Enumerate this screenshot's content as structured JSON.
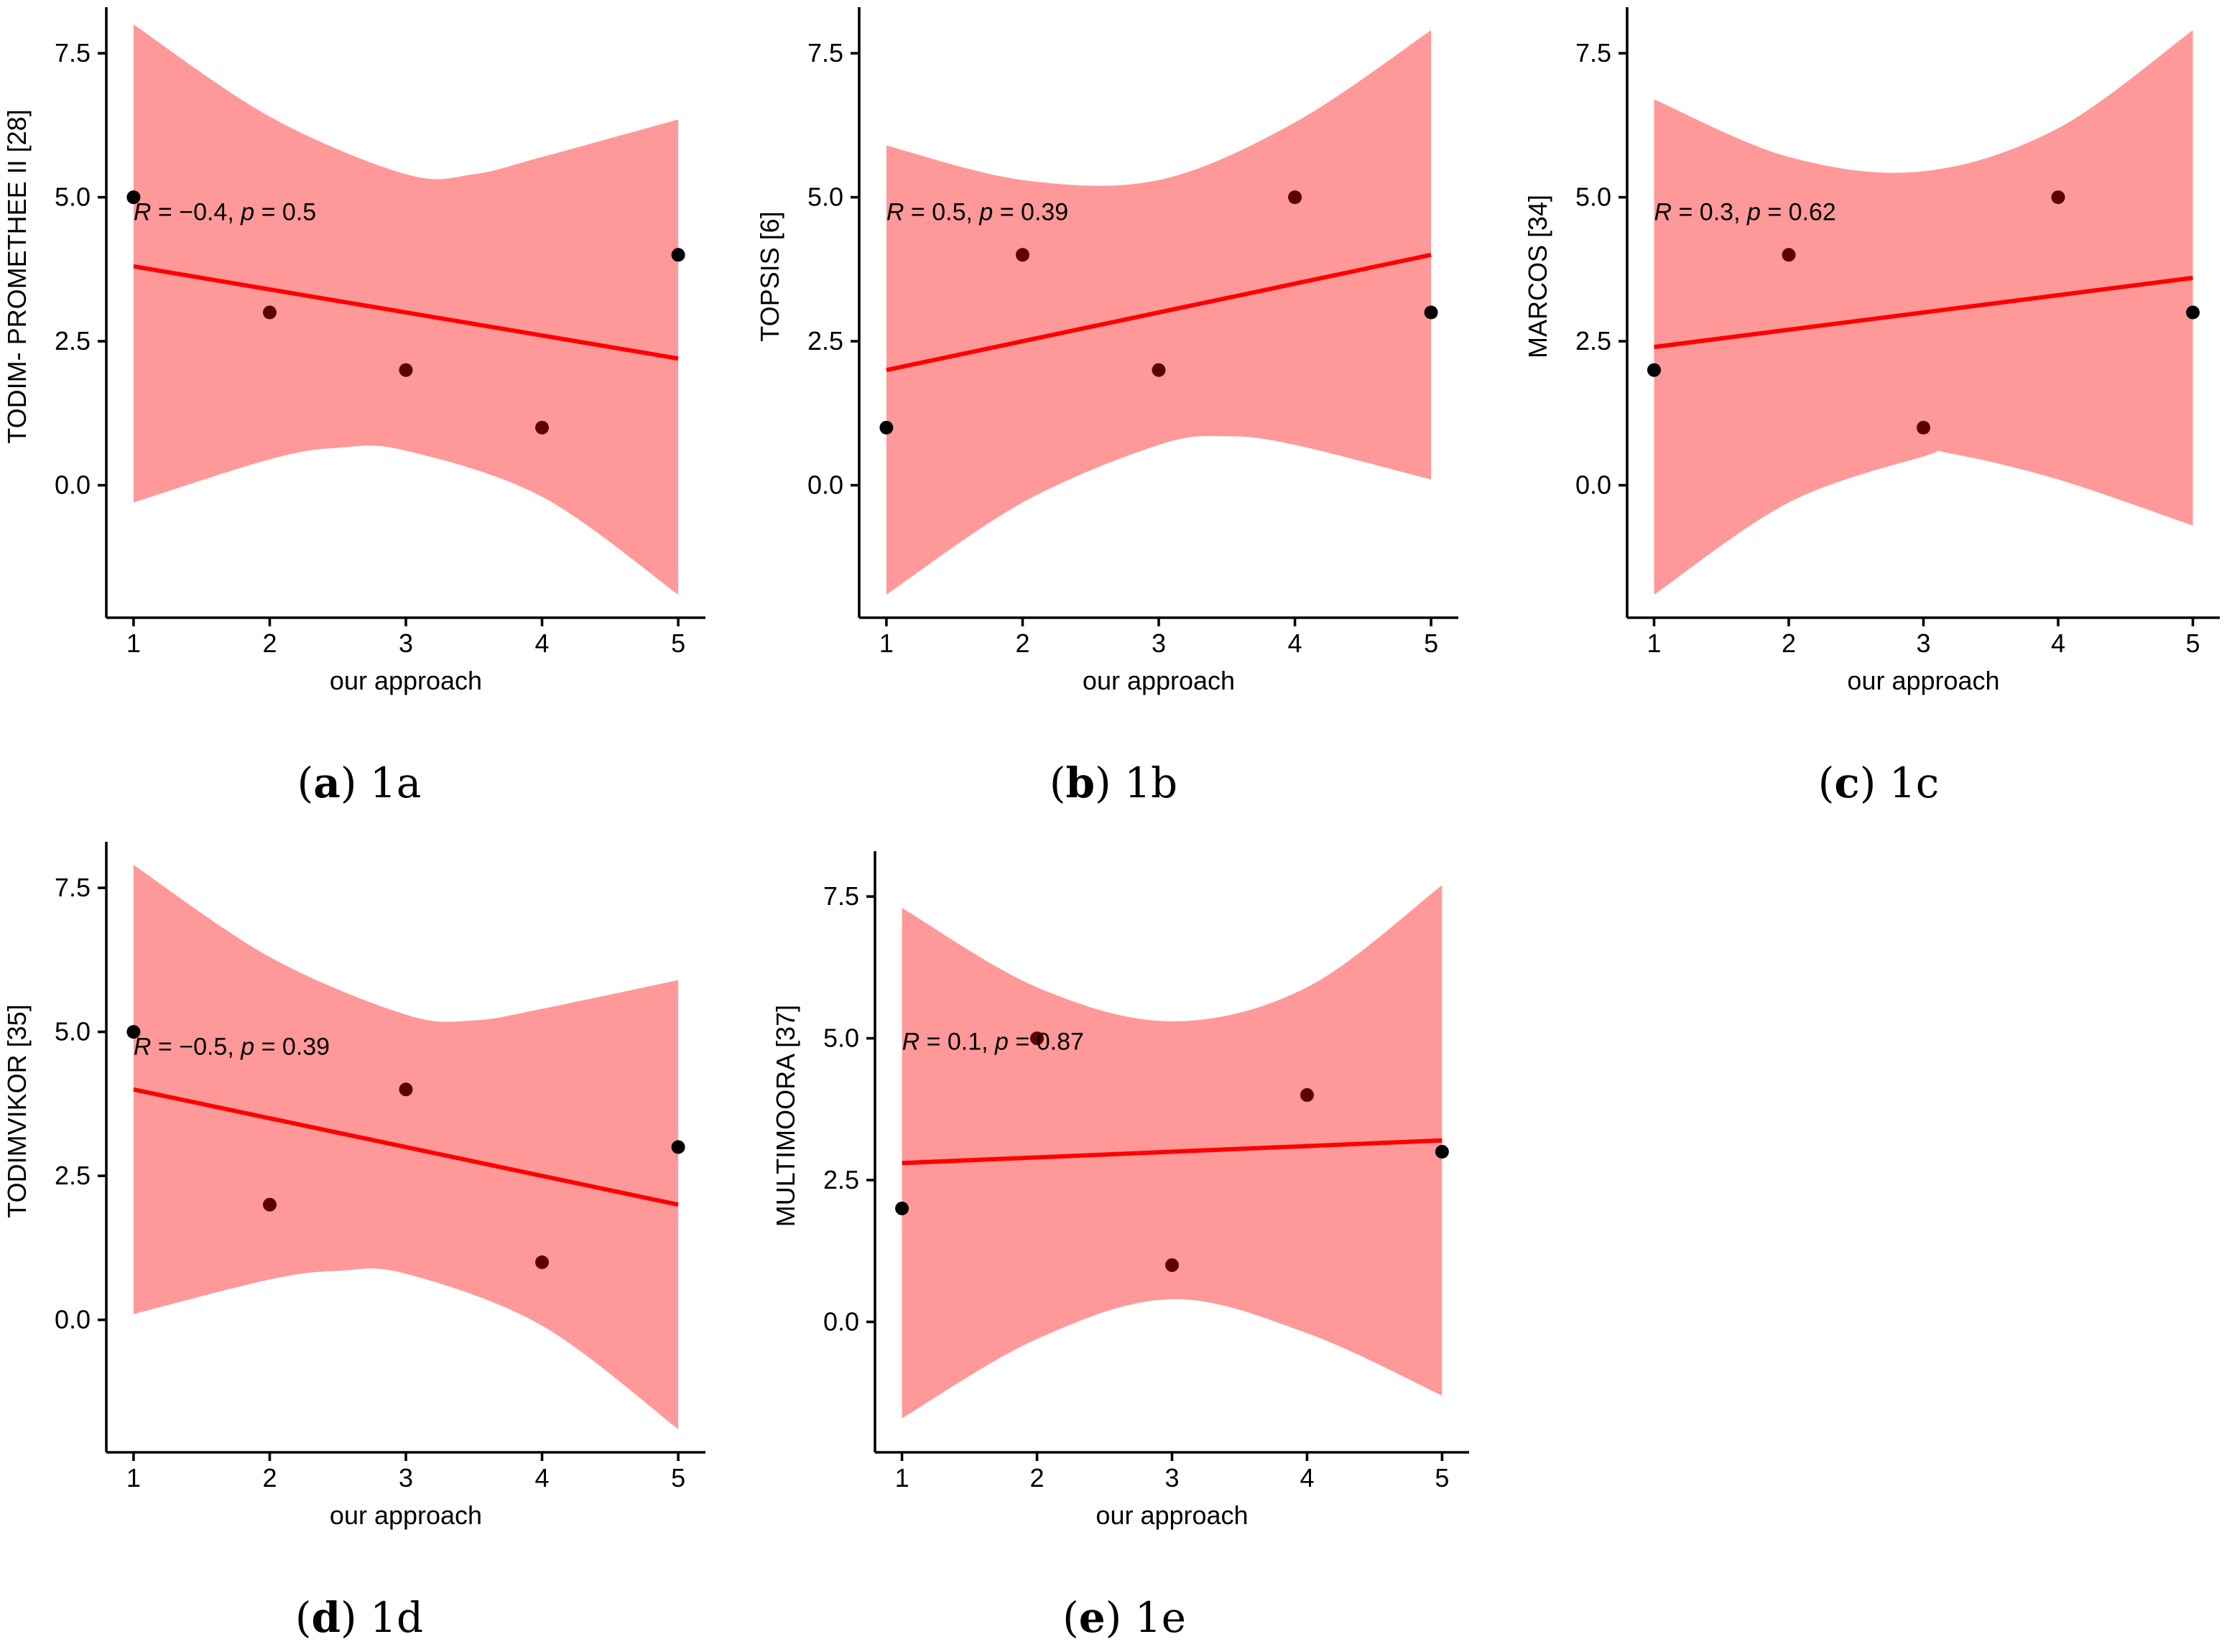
{
  "figure": {
    "colors": {
      "band": "#ff9999",
      "line": "#ff0000",
      "point": "#000000",
      "point_inside": "#5c0000"
    }
  },
  "chart_data": [
    {
      "type": "scatter",
      "panel_id": "a",
      "caption_letter": "a",
      "caption_text": "1a",
      "xlabel": "our approach",
      "ylabel": "TODIM- PROMETHEE II [28]",
      "x_ticks": [
        "1",
        "2",
        "3",
        "4",
        "5"
      ],
      "y_ticks": [
        "0.0",
        "2.5",
        "5.0",
        "7.5"
      ],
      "xlim": [
        0.8,
        5.2
      ],
      "ylim": [
        -2.3,
        8.3
      ],
      "points": {
        "x": [
          1,
          2,
          3,
          4,
          5
        ],
        "y": [
          5,
          3,
          2,
          1,
          4
        ]
      },
      "fit": {
        "intercept": 4.2,
        "slope": -0.4
      },
      "band_upper": [
        [
          1,
          8.0
        ],
        [
          2,
          6.4
        ],
        [
          3,
          5.4
        ],
        [
          3.5,
          5.4
        ],
        [
          4,
          5.7
        ],
        [
          5,
          6.35
        ]
      ],
      "band_lower": [
        [
          1,
          -0.3
        ],
        [
          2,
          0.45
        ],
        [
          2.5,
          0.65
        ],
        [
          3,
          0.6
        ],
        [
          4,
          -0.2
        ],
        [
          5,
          -1.9
        ]
      ],
      "annotation": {
        "r_label": "R",
        "r_value": " = −0.4, ",
        "p_label": "p",
        "p_value": " = 0.5"
      },
      "annotation_at": [
        1.0,
        4.6
      ]
    },
    {
      "type": "scatter",
      "panel_id": "b",
      "caption_letter": "b",
      "caption_text": "1b",
      "xlabel": "our approach",
      "ylabel": "TOPSIS [6]",
      "x_ticks": [
        "1",
        "2",
        "3",
        "4",
        "5"
      ],
      "y_ticks": [
        "0.0",
        "2.5",
        "5.0",
        "7.5"
      ],
      "xlim": [
        0.8,
        5.2
      ],
      "ylim": [
        -2.3,
        8.3
      ],
      "points": {
        "x": [
          1,
          2,
          3,
          4,
          5
        ],
        "y": [
          1,
          4,
          2,
          5,
          3
        ]
      },
      "fit": {
        "intercept": 1.5,
        "slope": 0.5
      },
      "band_upper": [
        [
          1,
          5.9
        ],
        [
          2,
          5.3
        ],
        [
          3,
          5.3
        ],
        [
          4,
          6.3
        ],
        [
          5,
          7.9
        ]
      ],
      "band_lower": [
        [
          1,
          -1.9
        ],
        [
          2,
          -0.3
        ],
        [
          3,
          0.7
        ],
        [
          3.5,
          0.85
        ],
        [
          4,
          0.7
        ],
        [
          5,
          0.1
        ]
      ],
      "annotation": {
        "r_label": "R",
        "r_value": " = 0.5, ",
        "p_label": "p",
        "p_value": " = 0.39"
      },
      "annotation_at": [
        1.0,
        4.6
      ]
    },
    {
      "type": "scatter",
      "panel_id": "c",
      "caption_letter": "c",
      "caption_text": "1c",
      "xlabel": "our approach",
      "ylabel": "MARCOS [34]",
      "x_ticks": [
        "1",
        "2",
        "3",
        "4",
        "5"
      ],
      "y_ticks": [
        "0.0",
        "2.5",
        "5.0",
        "7.5"
      ],
      "xlim": [
        0.8,
        5.2
      ],
      "ylim": [
        -2.3,
        8.3
      ],
      "points": {
        "x": [
          1,
          2,
          3,
          4,
          5
        ],
        "y": [
          2,
          4,
          1,
          5,
          3
        ]
      },
      "fit": {
        "intercept": 2.1,
        "slope": 0.3
      },
      "band_upper": [
        [
          1,
          6.7
        ],
        [
          2,
          5.7
        ],
        [
          3,
          5.45
        ],
        [
          4,
          6.2
        ],
        [
          5,
          7.9
        ]
      ],
      "band_lower": [
        [
          1,
          -1.9
        ],
        [
          2,
          -0.3
        ],
        [
          3,
          0.5
        ],
        [
          3.2,
          0.55
        ],
        [
          4,
          0.1
        ],
        [
          5,
          -0.7
        ]
      ],
      "annotation": {
        "r_label": "R",
        "r_value": " = 0.3, ",
        "p_label": "p",
        "p_value": " = 0.62"
      },
      "annotation_at": [
        1.0,
        4.6
      ]
    },
    {
      "type": "scatter",
      "panel_id": "d",
      "caption_letter": "d",
      "caption_text": "1d",
      "xlabel": "our approach",
      "ylabel": "TODIMVIKOR [35]",
      "x_ticks": [
        "1",
        "2",
        "3",
        "4",
        "5"
      ],
      "y_ticks": [
        "0.0",
        "2.5",
        "5.0",
        "7.5"
      ],
      "xlim": [
        0.8,
        5.2
      ],
      "ylim": [
        -2.3,
        8.3
      ],
      "points": {
        "x": [
          1,
          2,
          3,
          4,
          5
        ],
        "y": [
          5,
          2,
          4,
          1,
          3
        ]
      },
      "fit": {
        "intercept": 4.5,
        "slope": -0.5
      },
      "band_upper": [
        [
          1,
          7.9
        ],
        [
          2,
          6.3
        ],
        [
          3,
          5.3
        ],
        [
          3.5,
          5.2
        ],
        [
          4,
          5.4
        ],
        [
          5,
          5.9
        ]
      ],
      "band_lower": [
        [
          1,
          0.1
        ],
        [
          2,
          0.7
        ],
        [
          2.5,
          0.85
        ],
        [
          3,
          0.8
        ],
        [
          4,
          -0.1
        ],
        [
          5,
          -1.9
        ]
      ],
      "annotation": {
        "r_label": "R",
        "r_value": " = −0.5, ",
        "p_label": "p",
        "p_value": " = 0.39"
      },
      "annotation_at": [
        1.0,
        4.6
      ]
    },
    {
      "type": "scatter",
      "panel_id": "e",
      "caption_letter": "e",
      "caption_text": "1e",
      "xlabel": "our approach",
      "ylabel": "MULTIMOORA [37]",
      "x_ticks": [
        "1",
        "2",
        "3",
        "4",
        "5"
      ],
      "y_ticks": [
        "0.0",
        "2.5",
        "5.0",
        "7.5"
      ],
      "xlim": [
        0.8,
        5.2
      ],
      "ylim": [
        -2.3,
        8.3
      ],
      "points": {
        "x": [
          1,
          2,
          3,
          4,
          5
        ],
        "y": [
          2,
          5,
          1,
          4,
          3
        ]
      },
      "fit": {
        "intercept": 2.7,
        "slope": 0.1
      },
      "band_upper": [
        [
          1,
          7.3
        ],
        [
          2,
          5.9
        ],
        [
          3,
          5.3
        ],
        [
          4,
          5.9
        ],
        [
          5,
          7.7
        ]
      ],
      "band_lower": [
        [
          1,
          -1.7
        ],
        [
          2,
          -0.3
        ],
        [
          3,
          0.4
        ],
        [
          4,
          -0.2
        ],
        [
          5,
          -1.3
        ]
      ],
      "annotation": {
        "r_label": "R",
        "r_value": " = 0.1, ",
        "p_label": "p",
        "p_value": " = 0.87"
      },
      "annotation_at": [
        1.0,
        4.8
      ]
    }
  ]
}
